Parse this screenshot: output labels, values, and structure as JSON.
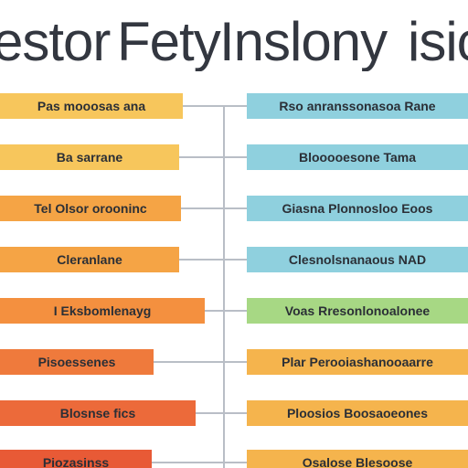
{
  "title": {
    "parts": [
      "estor",
      "Fety",
      "Inslony",
      "isic"
    ]
  },
  "colors": {
    "yellow": "#f7c65c",
    "orange_light": "#f5a445",
    "orange": "#f4903f",
    "orange_deep": "#ef7a3c",
    "red_orange": "#ec6a3a",
    "red": "#e85a36",
    "blue": "#8fd0de",
    "green": "#a7d884",
    "connector": "#b9bec6",
    "text": "#2b2f36"
  },
  "left_bars": [
    {
      "label": "Pas mooosas ana",
      "color": "#f7c65c"
    },
    {
      "label": "Ba sarrane",
      "color": "#f7c65c"
    },
    {
      "label": "Tel  Olsor  orooninc",
      "color": "#f5a445"
    },
    {
      "label": "Cleranlane",
      "color": "#f5a445"
    },
    {
      "label": "I Eksbomlenayg",
      "color": "#f4903f"
    },
    {
      "label": "Pisoessenes",
      "color": "#ef7a3c"
    },
    {
      "label": "Blosnse fics",
      "color": "#ec6a3a"
    },
    {
      "label": "Piozasinss",
      "color": "#e85a36"
    }
  ],
  "right_bars": [
    {
      "label": "Rso anranssonasoa Rane",
      "color": "#8fd0de"
    },
    {
      "label": "Blooooesone Tama",
      "color": "#8fd0de"
    },
    {
      "label": "Giasna Plonnosloo Eoos",
      "color": "#8fd0de"
    },
    {
      "label": "Clesnolsnanaous NAD",
      "color": "#8fd0de"
    },
    {
      "label": "Voas  Rresonlonoalonee",
      "color": "#a7d884"
    },
    {
      "label": "Plar Perooiashanooaarre",
      "color": "#f5b44d"
    },
    {
      "label": "Ploosios Boosaoeones",
      "color": "#f5b44d"
    },
    {
      "label": "Osalose  Blesoose",
      "color": "#f5b44d"
    }
  ]
}
